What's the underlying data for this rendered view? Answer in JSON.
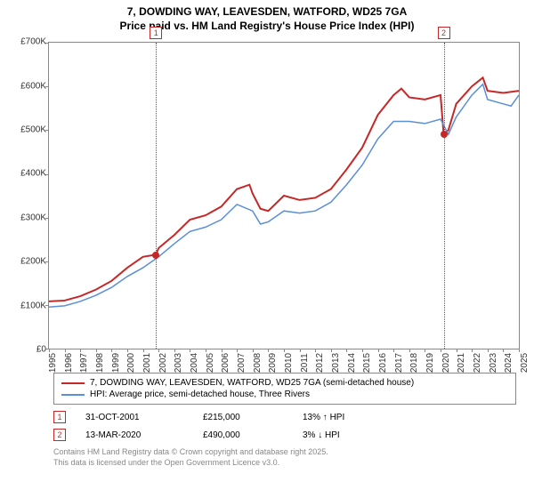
{
  "title_line1": "7, DOWDING WAY, LEAVESDEN, WATFORD, WD25 7GA",
  "title_line2": "Price paid vs. HM Land Registry's House Price Index (HPI)",
  "chart": {
    "type": "line",
    "background_color": "#ffffff",
    "border_color": "#888888",
    "label_fontsize": 10,
    "ylim": [
      0,
      700000
    ],
    "ytick_step": 100000,
    "yticks": [
      "£0",
      "£100K",
      "£200K",
      "£300K",
      "£400K",
      "£500K",
      "£600K",
      "£700K"
    ],
    "xlim": [
      1995,
      2025
    ],
    "xticks": [
      "1995",
      "1996",
      "1997",
      "1998",
      "1999",
      "2000",
      "2001",
      "2002",
      "2003",
      "2004",
      "2005",
      "2006",
      "2007",
      "2008",
      "2009",
      "2010",
      "2011",
      "2012",
      "2013",
      "2014",
      "2015",
      "2016",
      "2017",
      "2018",
      "2019",
      "2020",
      "2021",
      "2022",
      "2023",
      "2024",
      "2025"
    ],
    "series": [
      {
        "name": "7, DOWDING WAY, LEAVESDEN, WATFORD, WD25 7GA (semi-detached house)",
        "color": "#c62828",
        "line_width": 2,
        "data": [
          [
            1995,
            108000
          ],
          [
            1996,
            110000
          ],
          [
            1997,
            120000
          ],
          [
            1998,
            135000
          ],
          [
            1999,
            155000
          ],
          [
            2000,
            185000
          ],
          [
            2001,
            210000
          ],
          [
            2001.83,
            215000
          ],
          [
            2002,
            230000
          ],
          [
            2003,
            260000
          ],
          [
            2004,
            295000
          ],
          [
            2005,
            305000
          ],
          [
            2006,
            325000
          ],
          [
            2007,
            365000
          ],
          [
            2007.8,
            375000
          ],
          [
            2008,
            355000
          ],
          [
            2008.5,
            320000
          ],
          [
            2009,
            315000
          ],
          [
            2010,
            350000
          ],
          [
            2011,
            340000
          ],
          [
            2012,
            345000
          ],
          [
            2013,
            365000
          ],
          [
            2014,
            410000
          ],
          [
            2015,
            460000
          ],
          [
            2016,
            535000
          ],
          [
            2017,
            580000
          ],
          [
            2017.5,
            595000
          ],
          [
            2018,
            575000
          ],
          [
            2019,
            570000
          ],
          [
            2020,
            580000
          ],
          [
            2020.2,
            490000
          ],
          [
            2020.5,
            500000
          ],
          [
            2021,
            560000
          ],
          [
            2022,
            600000
          ],
          [
            2022.7,
            620000
          ],
          [
            2023,
            590000
          ],
          [
            2024,
            585000
          ],
          [
            2025,
            590000
          ]
        ]
      },
      {
        "name": "HPI: Average price, semi-detached house, Three Rivers",
        "color": "#5b8fd6",
        "line_width": 1.5,
        "data": [
          [
            1995,
            95000
          ],
          [
            1996,
            98000
          ],
          [
            1997,
            108000
          ],
          [
            1998,
            122000
          ],
          [
            1999,
            140000
          ],
          [
            2000,
            165000
          ],
          [
            2001,
            185000
          ],
          [
            2002,
            210000
          ],
          [
            2003,
            240000
          ],
          [
            2004,
            268000
          ],
          [
            2005,
            278000
          ],
          [
            2006,
            295000
          ],
          [
            2007,
            330000
          ],
          [
            2008,
            315000
          ],
          [
            2008.5,
            285000
          ],
          [
            2009,
            290000
          ],
          [
            2010,
            315000
          ],
          [
            2011,
            310000
          ],
          [
            2012,
            315000
          ],
          [
            2013,
            335000
          ],
          [
            2014,
            375000
          ],
          [
            2015,
            420000
          ],
          [
            2016,
            480000
          ],
          [
            2017,
            520000
          ],
          [
            2018,
            520000
          ],
          [
            2019,
            515000
          ],
          [
            2020,
            525000
          ],
          [
            2020.5,
            490000
          ],
          [
            2021,
            530000
          ],
          [
            2022,
            580000
          ],
          [
            2022.7,
            605000
          ],
          [
            2023,
            570000
          ],
          [
            2024,
            560000
          ],
          [
            2024.5,
            555000
          ],
          [
            2025,
            580000
          ]
        ]
      }
    ],
    "markers": [
      {
        "n": "1",
        "x": 2001.83,
        "y": 215000
      },
      {
        "n": "2",
        "x": 2020.2,
        "y": 490000
      }
    ]
  },
  "legend": {
    "items": [
      {
        "color": "#c62828",
        "label": "7, DOWDING WAY, LEAVESDEN, WATFORD, WD25 7GA (semi-detached house)"
      },
      {
        "color": "#5b8fd6",
        "label": "HPI: Average price, semi-detached house, Three Rivers"
      }
    ]
  },
  "transactions": [
    {
      "n": "1",
      "date": "31-OCT-2001",
      "price": "£215,000",
      "delta": "13% ↑ HPI"
    },
    {
      "n": "2",
      "date": "13-MAR-2020",
      "price": "£490,000",
      "delta": "3% ↓ HPI"
    }
  ],
  "footnote_line1": "Contains HM Land Registry data © Crown copyright and database right 2025.",
  "footnote_line2": "This data is licensed under the Open Government Licence v3.0."
}
